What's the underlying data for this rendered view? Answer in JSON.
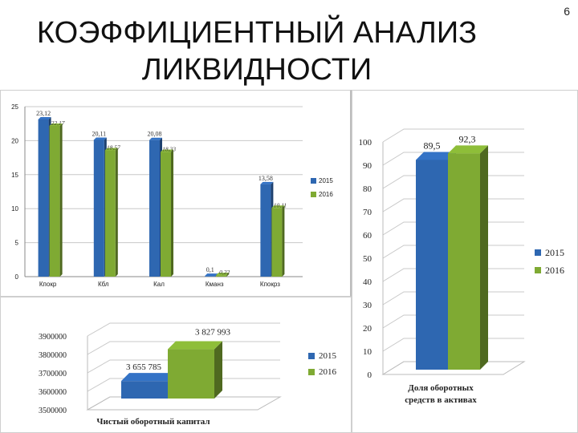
{
  "slide": {
    "title_line1": "КОЭФФИЦИЕНТНЫЙ АНАЛИЗ",
    "title_line2": "ЛИКВИДНОСТИ",
    "number": "6"
  },
  "colors": {
    "s2015": "#2e67b1",
    "s2016": "#7faa33"
  },
  "chart_data": [
    {
      "type": "bar",
      "categories": [
        "Кпокр",
        "Кбл",
        "Кал",
        "Кманз",
        "Кпокрз"
      ],
      "series": [
        {
          "name": "2015",
          "values": [
            23.12,
            20.11,
            20.08,
            0.1,
            13.58
          ],
          "labels": [
            "23,12",
            "20,11",
            "20,08",
            "0,1",
            "13,58"
          ]
        },
        {
          "name": "2016",
          "values": [
            22.17,
            18.57,
            18.33,
            0.22,
            10.11
          ],
          "labels": [
            "22,17",
            "18,57",
            "18,33",
            "0,22",
            "10,11"
          ]
        }
      ],
      "yticks": [
        "0",
        "5",
        "10",
        "15",
        "20",
        "25"
      ],
      "ylim": [
        0,
        25
      ],
      "legend": "right",
      "grid": true
    },
    {
      "type": "bar",
      "categories": [
        "Чистый оборотный капитал"
      ],
      "series": [
        {
          "name": "2015",
          "values": [
            3655785
          ],
          "labels": [
            "3 655 785"
          ]
        },
        {
          "name": "2016",
          "values": [
            3827993
          ],
          "labels": [
            "3 827 993"
          ]
        }
      ],
      "yticks": [
        "3500000",
        "3600000",
        "3700000",
        "3800000",
        "3900000"
      ],
      "ylim": [
        3500000,
        3900000
      ],
      "legend": "right",
      "grid": true
    },
    {
      "type": "bar",
      "categories": [
        "Доля оборотных средств в активах"
      ],
      "category_lines": [
        "Доля оборотных",
        "средств в активах"
      ],
      "series": [
        {
          "name": "2015",
          "values": [
            89.5
          ],
          "labels": [
            "89,5"
          ]
        },
        {
          "name": "2016",
          "values": [
            92.3
          ],
          "labels": [
            "92,3"
          ]
        }
      ],
      "yticks": [
        "0",
        "10",
        "20",
        "30",
        "40",
        "50",
        "60",
        "70",
        "80",
        "90",
        "100"
      ],
      "ylim": [
        0,
        100
      ],
      "legend": "right",
      "grid": true
    }
  ]
}
